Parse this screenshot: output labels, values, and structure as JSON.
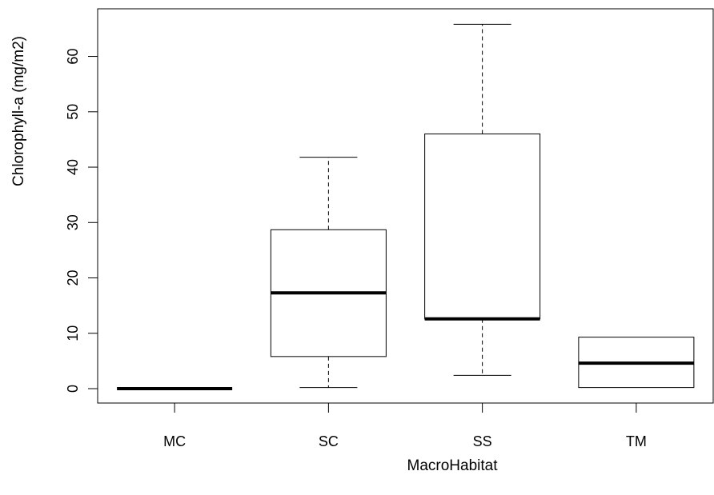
{
  "chart_data": {
    "type": "boxplot",
    "title": "",
    "xlabel": "MacroHabitat",
    "ylabel": "Chlorophyll-a (mg/m2)",
    "categories": [
      "MC",
      "SC",
      "SS",
      "TM"
    ],
    "boxes": [
      {
        "whisker_low": 0.0,
        "q1": 0.0,
        "median": 0.0,
        "q3": 0.0,
        "whisker_high": 0.0
      },
      {
        "whisker_low": 0.2,
        "q1": 5.8,
        "median": 17.3,
        "q3": 28.7,
        "whisker_high": 41.8
      },
      {
        "whisker_low": 2.4,
        "q1": 12.6,
        "median": 12.6,
        "q3": 46.0,
        "whisker_high": 65.8
      },
      {
        "whisker_low": 0.2,
        "q1": 0.2,
        "median": 4.6,
        "q3": 9.3,
        "whisker_high": 9.3
      }
    ],
    "yticks": [
      0,
      10,
      20,
      30,
      40,
      50,
      60
    ],
    "ylim": [
      -2.6,
      68.6
    ],
    "grid": false
  }
}
